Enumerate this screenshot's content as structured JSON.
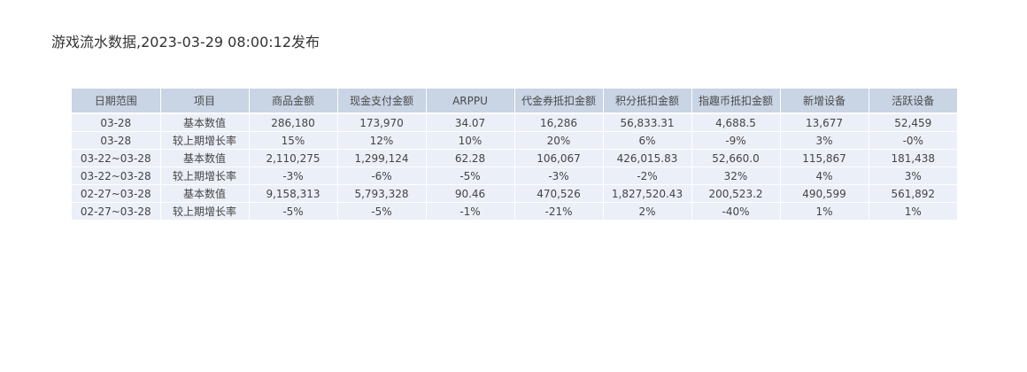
{
  "report": {
    "title": "游戏流水数据,2023-03-29 08:00:12发布"
  },
  "chart_data": {
    "type": "table",
    "title": "游戏流水数据,2023-03-29 08:00:12发布",
    "columns": [
      "日期范围",
      "项目",
      "商品金额",
      "现金支付金额",
      "ARPPU",
      "代金券抵扣金额",
      "积分抵扣金额",
      "指趣币抵扣金额",
      "新增设备",
      "活跃设备"
    ],
    "rows": [
      [
        "03-28",
        "基本数值",
        "286,180",
        "173,970",
        "34.07",
        "16,286",
        "56,833.31",
        "4,688.5",
        "13,677",
        "52,459"
      ],
      [
        "03-28",
        "较上期增长率",
        "15%",
        "12%",
        "10%",
        "20%",
        "6%",
        "-9%",
        "3%",
        "-0%"
      ],
      [
        "03-22~03-28",
        "基本数值",
        "2,110,275",
        "1,299,124",
        "62.28",
        "106,067",
        "426,015.83",
        "52,660.0",
        "115,867",
        "181,438"
      ],
      [
        "03-22~03-28",
        "较上期增长率",
        "-3%",
        "-6%",
        "-5%",
        "-3%",
        "-2%",
        "32%",
        "4%",
        "3%"
      ],
      [
        "02-27~03-28",
        "基本数值",
        "9,158,313",
        "5,793,328",
        "90.46",
        "470,526",
        "1,827,520.43",
        "200,523.2",
        "490,599",
        "561,892"
      ],
      [
        "02-27~03-28",
        "较上期增长率",
        "-5%",
        "-5%",
        "-1%",
        "-21%",
        "2%",
        "-40%",
        "1%",
        "1%"
      ]
    ]
  },
  "colors": {
    "header_bg": "#c9d4e4",
    "cell_bg": "#ebeff7",
    "text": "#444444"
  }
}
